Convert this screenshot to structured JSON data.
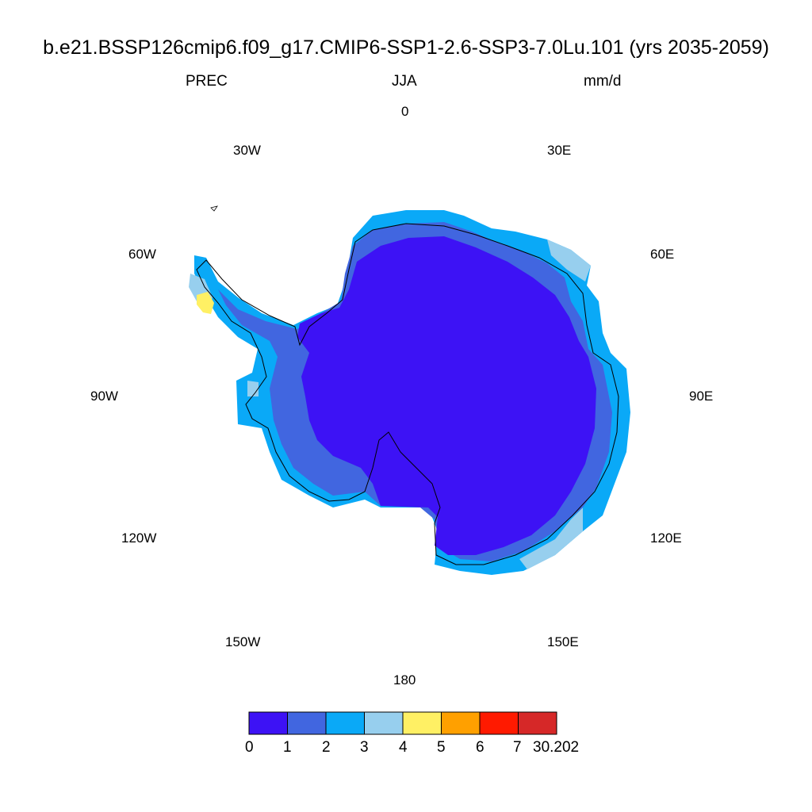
{
  "title": "b.e21.BSSP126cmip6.f09_g17.CMIP6-SSP1-2.6-SSP3-7.0Lu.101 (yrs 2035-2059)",
  "subtitle": {
    "left": "PREC",
    "center": "JJA",
    "right": "mm/d"
  },
  "longitude_labels": {
    "deg0": "0",
    "e30": "30E",
    "e60": "60E",
    "e90": "90E",
    "e120": "120E",
    "e150": "150E",
    "deg180": "180",
    "w150": "150W",
    "w120": "120W",
    "w90": "90W",
    "w60": "60W",
    "w30": "30W"
  },
  "colorbar": {
    "colors": [
      "#3d12f5",
      "#4166e0",
      "#0aa9f7",
      "#97cfee",
      "#fff064",
      "#ffa000",
      "#ff1a00",
      "#d62828"
    ],
    "labels": [
      "0",
      "1",
      "2",
      "3",
      "4",
      "5",
      "6",
      "7",
      "30.202"
    ]
  },
  "map": {
    "projection": "south-polar-stereographic",
    "field": "precipitation",
    "interior_color": "#3d12f5",
    "coast_band_color": "#4166e0",
    "outer_band_color": "#0aa9f7",
    "peninsula_tip_color": "#97cfee",
    "peninsula_max_color": "#fff064"
  }
}
